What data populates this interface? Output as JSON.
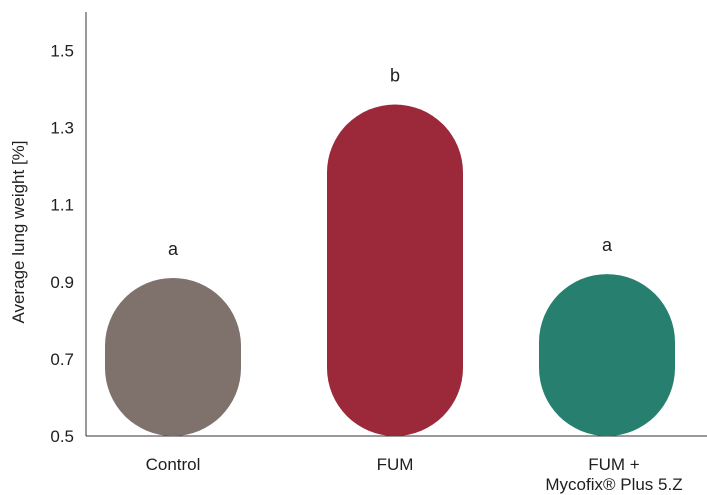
{
  "chart_data": {
    "type": "bar",
    "ylabel": "Average lung weight [%]",
    "xlabel": "",
    "ylim": [
      0.5,
      1.6
    ],
    "yticks": [
      0.5,
      0.7,
      0.9,
      1.1,
      1.3,
      1.5
    ],
    "categories": [
      {
        "line1": "Control",
        "line2": ""
      },
      {
        "line1": "FUM",
        "line2": ""
      },
      {
        "line1": "FUM +",
        "line2": "Mycofix® Plus 5.Z"
      }
    ],
    "values": [
      0.91,
      1.36,
      0.92
    ],
    "significance": [
      "a",
      "b",
      "a"
    ],
    "colors": [
      "#7f716c",
      "#9b2939",
      "#27806f"
    ],
    "grid": false,
    "legend": "none"
  }
}
